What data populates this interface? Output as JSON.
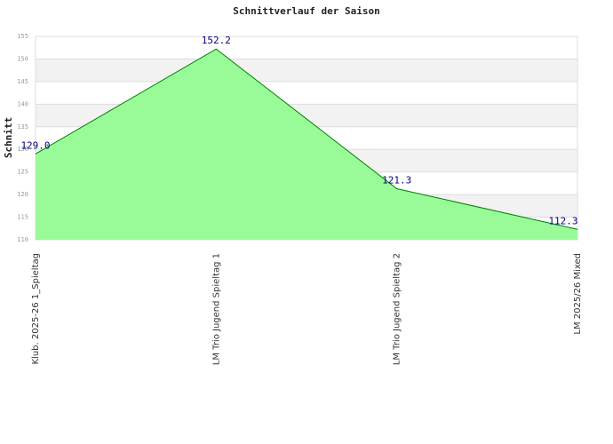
{
  "chart_data": {
    "type": "area",
    "title": "Schnittverlauf der Saison",
    "y_label": "Schnitt",
    "categories": [
      "Klub. 2025-26  1_Spieltag",
      "LM Trio Jugend Spieltag 1",
      "LM Trio Jugend Spieltag 2",
      "LM 2025/26 Mixed"
    ],
    "values": [
      129.0,
      152.2,
      121.3,
      112.3
    ],
    "value_labels": [
      "129.0",
      "152.2",
      "121.3",
      "112.3"
    ],
    "color": "#98fb98",
    "line_color": "#008000",
    "ylim": [
      110,
      155
    ],
    "yticks": [
      110,
      115,
      120,
      125,
      130,
      135,
      140,
      145,
      150,
      155
    ],
    "grid": true
  }
}
